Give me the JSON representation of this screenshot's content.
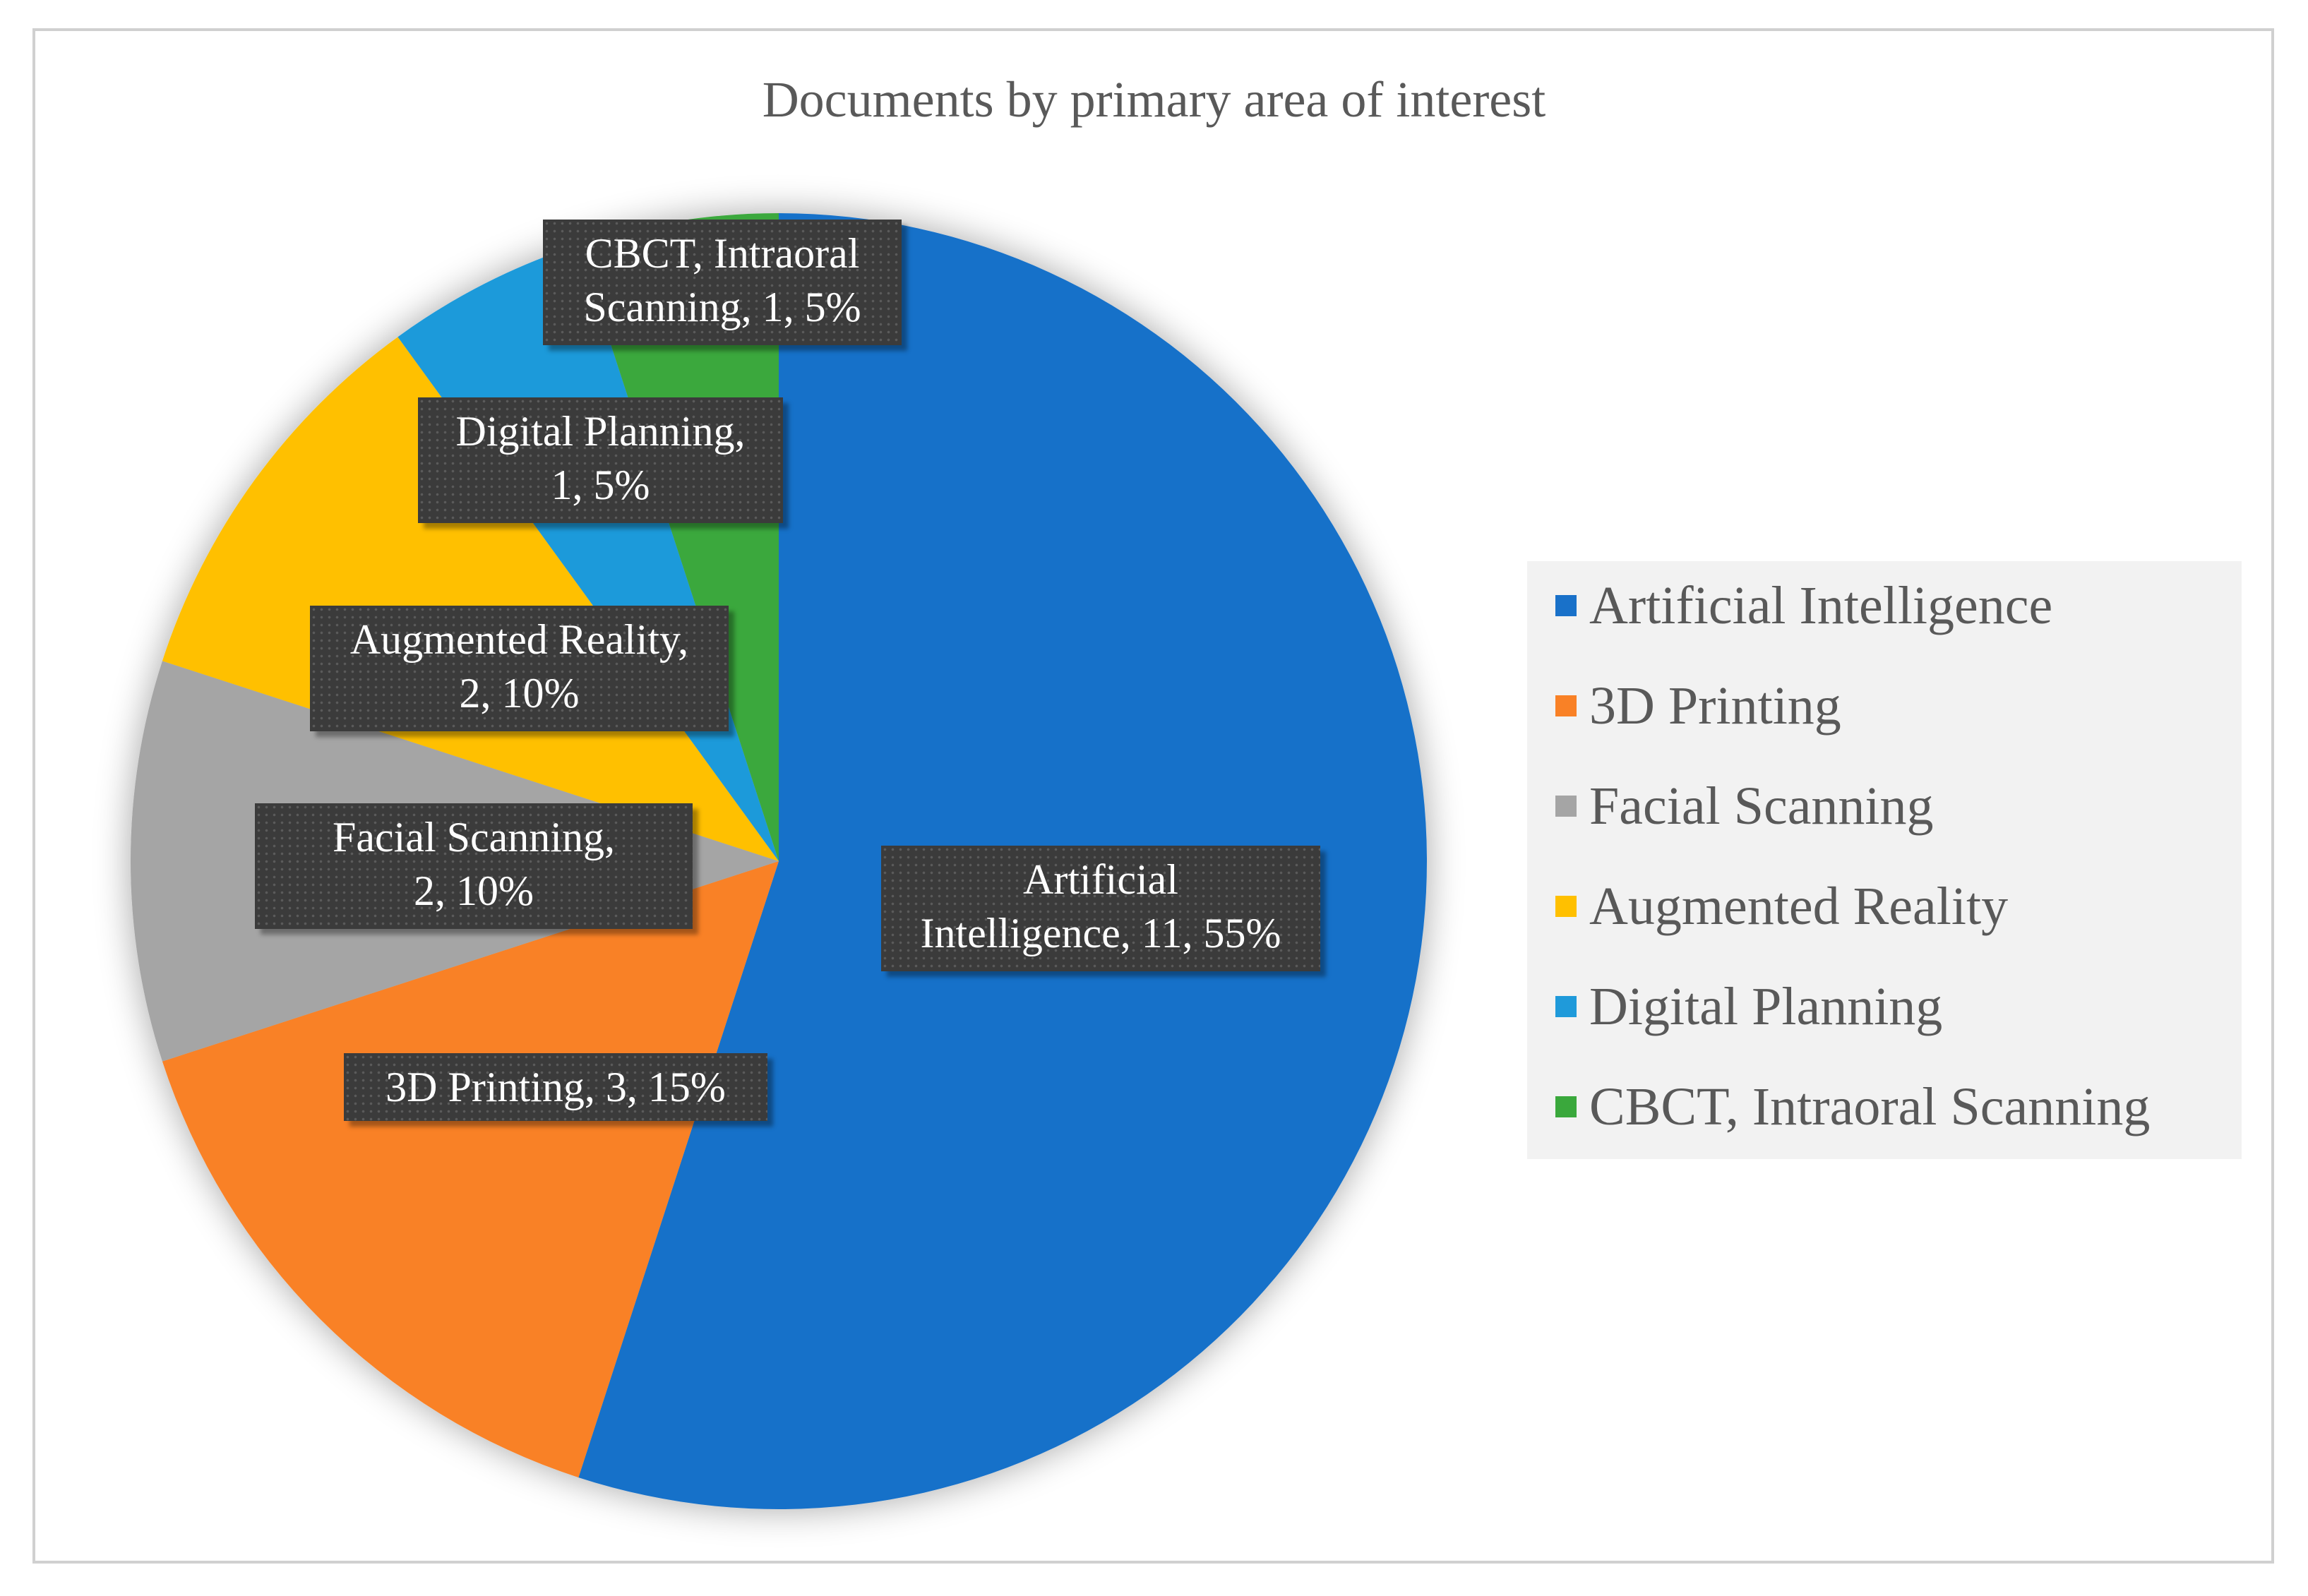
{
  "chart_data": {
    "type": "pie",
    "title": "Documents by primary area of interest",
    "slices": [
      {
        "label": "Artificial Intelligence",
        "value": 11,
        "percent": "55%",
        "color": "#1971c9",
        "label_lines": [
          "Artificial",
          "Intelligence, 11, 55%"
        ]
      },
      {
        "label": "3D Printing",
        "value": 3,
        "percent": "15%",
        "color": "#f98126",
        "label_lines": [
          "3D Printing, 3, 15%"
        ]
      },
      {
        "label": "Facial Scanning",
        "value": 2,
        "percent": "10%",
        "color": "#a5a5a5",
        "label_lines": [
          "Facial Scanning,",
          "2, 10%"
        ]
      },
      {
        "label": "Augmented Reality",
        "value": 2,
        "percent": "10%",
        "color": "#ffc000",
        "label_lines": [
          "Augmented Reality,",
          "2, 10%"
        ]
      },
      {
        "label": "Digital Planning",
        "value": 1,
        "percent": "5%",
        "color": "#1f9ada",
        "label_lines": [
          "Digital Planning,",
          "1, 5%"
        ]
      },
      {
        "label": "CBCT, Intraoral Scanning",
        "value": 1,
        "percent": "5%",
        "color": "#3aa83c",
        "label_lines": [
          "CBCT, Intraoral",
          "Scanning, 1, 5%"
        ]
      }
    ],
    "legend_position": "right"
  }
}
